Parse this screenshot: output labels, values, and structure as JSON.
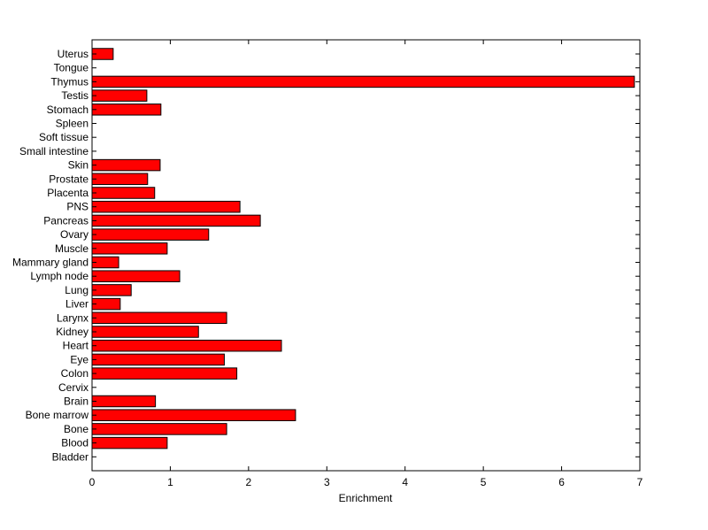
{
  "chart_data": {
    "type": "bar",
    "orientation": "horizontal",
    "categories": [
      "Uterus",
      "Tongue",
      "Thymus",
      "Testis",
      "Stomach",
      "Spleen",
      "Soft tissue",
      "Small intestine",
      "Skin",
      "Prostate",
      "Placenta",
      "PNS",
      "Pancreas",
      "Ovary",
      "Muscle",
      "Mammary gland",
      "Lymph node",
      "Lung",
      "Liver",
      "Larynx",
      "Kidney",
      "Heart",
      "Eye",
      "Colon",
      "Cervix",
      "Brain",
      "Bone marrow",
      "Bone",
      "Blood",
      "Bladder"
    ],
    "values": [
      0.27,
      0,
      6.93,
      0.7,
      0.88,
      0,
      0,
      0,
      0.87,
      0.71,
      0.8,
      1.89,
      2.15,
      1.49,
      0.96,
      0.34,
      1.12,
      0.5,
      0.36,
      1.72,
      1.36,
      2.42,
      1.69,
      1.85,
      0,
      0.81,
      2.6,
      1.72,
      0.96,
      0
    ],
    "xlabel": "Enrichment",
    "ylabel": "",
    "title": "",
    "xlim": [
      0,
      7
    ],
    "xticks": [
      0,
      1,
      2,
      3,
      4,
      5,
      6,
      7
    ],
    "grid": false,
    "bar_color": "#ff0000",
    "edge_color": "#000000"
  }
}
